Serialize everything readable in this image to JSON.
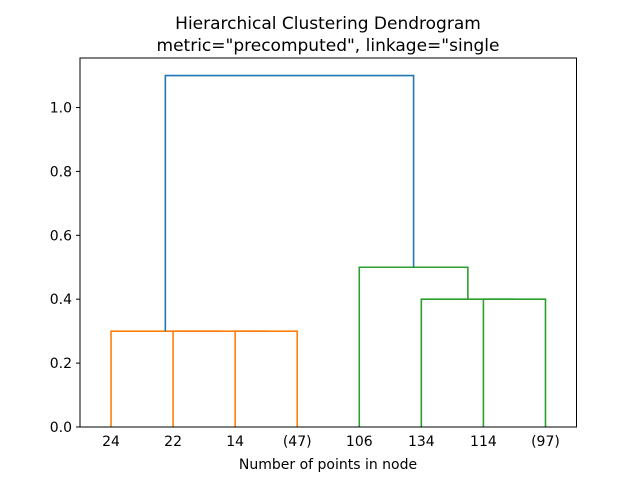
{
  "figure": {
    "background": "#ffffff"
  },
  "chart_data": {
    "type": "dendrogram",
    "title": "Hierarchical Clustering Dendrogram",
    "subtitle": "metric=\"precomputed\", linkage=\"single",
    "xlabel": "Number of points in node",
    "ylabel": "",
    "leaf_labels": [
      "24",
      "22",
      "14",
      "(47)",
      "106",
      "134",
      "114",
      "(97)"
    ],
    "leaf_positions": [
      5,
      15,
      25,
      35,
      45,
      55,
      65,
      75
    ],
    "x_range": [
      0,
      80
    ],
    "ylim": [
      0,
      1.155
    ],
    "yticks": [
      0.0,
      0.2,
      0.4,
      0.6,
      0.8,
      1.0
    ],
    "ytick_labels": [
      "0.0",
      "0.2",
      "0.4",
      "0.6",
      "0.8",
      "1.0"
    ],
    "grid": false,
    "legend": null,
    "colors": {
      "above_threshold_link": "#1f77b4",
      "left_cluster": "#ff7f0e",
      "right_cluster": "#2ca02c",
      "spine": "#000000",
      "text": "#000000"
    },
    "links": [
      {
        "color": "#ff7f0e",
        "icoord": [
          25,
          25,
          35,
          35
        ],
        "dcoord": [
          0.0,
          0.3,
          0.3,
          0.0
        ]
      },
      {
        "color": "#ff7f0e",
        "icoord": [
          15,
          15,
          30,
          30
        ],
        "dcoord": [
          0.0,
          0.3,
          0.3,
          0.3
        ]
      },
      {
        "color": "#ff7f0e",
        "icoord": [
          5,
          5,
          22.5,
          22.5
        ],
        "dcoord": [
          0.0,
          0.3,
          0.3,
          0.3
        ]
      },
      {
        "color": "#2ca02c",
        "icoord": [
          65,
          65,
          75,
          75
        ],
        "dcoord": [
          0.0,
          0.4,
          0.4,
          0.0
        ]
      },
      {
        "color": "#2ca02c",
        "icoord": [
          55,
          55,
          70,
          70
        ],
        "dcoord": [
          0.0,
          0.4,
          0.4,
          0.4
        ]
      },
      {
        "color": "#2ca02c",
        "icoord": [
          45,
          45,
          62.5,
          62.5
        ],
        "dcoord": [
          0.0,
          0.5,
          0.5,
          0.4
        ]
      },
      {
        "color": "#1f77b4",
        "icoord": [
          13.75,
          13.75,
          53.75,
          53.75
        ],
        "dcoord": [
          0.3,
          1.1,
          1.1,
          0.5
        ]
      }
    ]
  }
}
